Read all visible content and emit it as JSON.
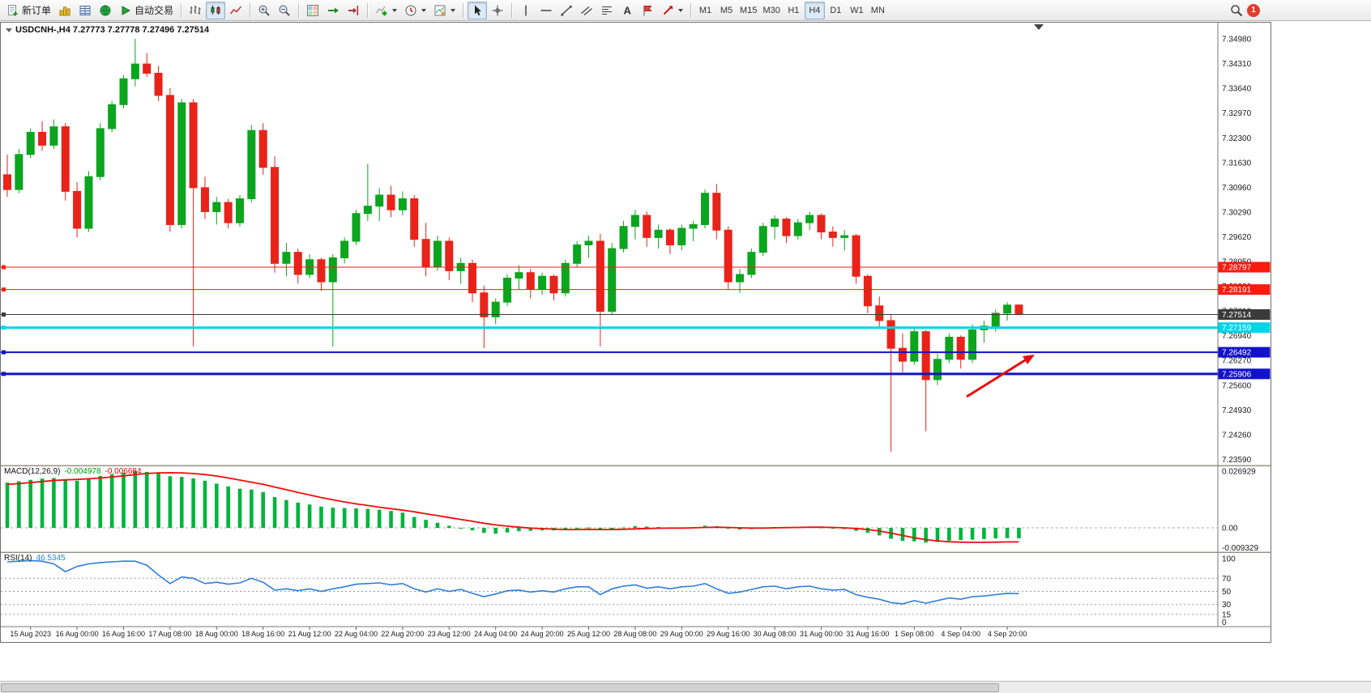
{
  "toolbar": {
    "new_order_label": "新订单",
    "auto_trading_label": "自动交易",
    "timeframes": [
      "M1",
      "M5",
      "M15",
      "M30",
      "H1",
      "H4",
      "D1",
      "W1",
      "MN"
    ],
    "active_timeframe": "H4",
    "notification_count": "1"
  },
  "chart": {
    "title": "USDCNH-,H4 7.27773 7.27778 7.27496 7.27514",
    "symbol": "USDCNH-",
    "timeframe": "H4",
    "open": "7.27773",
    "high": "7.27778",
    "low": "7.27496",
    "close": "7.27514",
    "up_color": "#0ba51e",
    "down_color": "#e8231a",
    "price_axis_labels": [
      "7.34980",
      "7.34310",
      "7.33640",
      "7.32970",
      "7.32300",
      "7.31630",
      "7.30960",
      "7.30290",
      "7.29620",
      "7.28950",
      "7.28280",
      "7.27610",
      "7.26940",
      "7.26270",
      "7.25600",
      "7.24930",
      "7.24260",
      "7.23590"
    ],
    "time_axis_labels": [
      "15 Aug 2023",
      "16 Aug 00:00",
      "16 Aug 16:00",
      "17 Aug 08:00",
      "18 Aug 00:00",
      "18 Aug 16:00",
      "21 Aug 12:00",
      "22 Aug 04:00",
      "22 Aug 20:00",
      "23 Aug 12:00",
      "24 Aug 04:00",
      "24 Aug 20:00",
      "25 Aug 12:00",
      "28 Aug 08:00",
      "29 Aug 00:00",
      "29 Aug 16:00",
      "30 Aug 08:00",
      "31 Aug 00:00",
      "31 Aug 16:00",
      "1 Sep 08:00",
      "4 Sep 04:00",
      "4 Sep 20:00"
    ],
    "hlines": [
      {
        "name": "resistance-line-1",
        "price": 7.28797,
        "label": "7.28797",
        "color": "#ff1a0e",
        "width": 1
      },
      {
        "name": "resistance-line-2",
        "price": 7.28191,
        "label": "7.28191",
        "color": "#ff1a0e",
        "width": 1
      },
      {
        "name": "current-price-line",
        "price": 7.27514,
        "label": "7.27514",
        "color": "#3a3a3a",
        "width": 1
      },
      {
        "name": "support-line-cyan",
        "price": 7.27159,
        "label": "7.27159",
        "color": "#00d4e8",
        "width": 3
      },
      {
        "name": "support-line-blue-1",
        "price": 7.26492,
        "label": "7.26492",
        "color": "#1212cc",
        "width": 2
      },
      {
        "name": "support-line-blue-2",
        "price": 7.25906,
        "label": "7.25906",
        "color": "#1212cc",
        "width": 3
      }
    ],
    "trend_arrow_color": "#e80c0c",
    "candles": [
      [
        7.313,
        7.3185,
        7.307,
        7.309
      ],
      [
        7.309,
        7.32,
        7.308,
        7.3185
      ],
      [
        7.3185,
        7.3255,
        7.3175,
        7.3245
      ],
      [
        7.3245,
        7.3275,
        7.3195,
        7.321
      ],
      [
        7.321,
        7.328,
        7.32,
        7.326
      ],
      [
        7.326,
        7.327,
        7.306,
        7.3085
      ],
      [
        7.3085,
        7.311,
        7.296,
        7.2985
      ],
      [
        7.2985,
        7.314,
        7.2975,
        7.3125
      ],
      [
        7.3125,
        7.327,
        7.3115,
        7.3255
      ],
      [
        7.3255,
        7.333,
        7.3245,
        7.332
      ],
      [
        7.332,
        7.34,
        7.331,
        7.339
      ],
      [
        7.339,
        7.3498,
        7.337,
        7.343
      ],
      [
        7.343,
        7.346,
        7.3395,
        7.3405
      ],
      [
        7.3405,
        7.3425,
        7.333,
        7.3345
      ],
      [
        7.3345,
        7.3365,
        7.2975,
        7.2995
      ],
      [
        7.2995,
        7.3335,
        7.2985,
        7.3325
      ],
      [
        7.3325,
        7.3335,
        7.2665,
        7.3095
      ],
      [
        7.3095,
        7.3125,
        7.301,
        7.303
      ],
      [
        7.303,
        7.307,
        7.2995,
        7.3055
      ],
      [
        7.3055,
        7.3065,
        7.2985,
        7.3
      ],
      [
        7.3,
        7.3075,
        7.299,
        7.3065
      ],
      [
        7.3065,
        7.3265,
        7.3055,
        7.325
      ],
      [
        7.325,
        7.327,
        7.313,
        7.315
      ],
      [
        7.315,
        7.318,
        7.2865,
        7.289
      ],
      [
        7.289,
        7.2945,
        7.2855,
        7.292
      ],
      [
        7.292,
        7.293,
        7.2835,
        7.286
      ],
      [
        7.286,
        7.2915,
        7.285,
        7.29
      ],
      [
        7.29,
        7.2905,
        7.2815,
        7.284
      ],
      [
        7.284,
        7.2915,
        7.2665,
        7.2905
      ],
      [
        7.2905,
        7.296,
        7.289,
        7.295
      ],
      [
        7.295,
        7.3035,
        7.294,
        7.3025
      ],
      [
        7.3025,
        7.316,
        7.3005,
        7.3045
      ],
      [
        7.3045,
        7.3095,
        7.3005,
        7.3075
      ],
      [
        7.3075,
        7.31,
        7.3015,
        7.3035
      ],
      [
        7.3035,
        7.3085,
        7.302,
        7.3065
      ],
      [
        7.3065,
        7.3075,
        7.2935,
        7.2955
      ],
      [
        7.2955,
        7.3,
        7.2855,
        7.288
      ],
      [
        7.288,
        7.2965,
        7.287,
        7.295
      ],
      [
        7.295,
        7.296,
        7.2845,
        7.287
      ],
      [
        7.287,
        7.2905,
        7.2835,
        7.289
      ],
      [
        7.289,
        7.29,
        7.2785,
        7.281
      ],
      [
        7.281,
        7.283,
        7.266,
        7.2745
      ],
      [
        7.2745,
        7.2795,
        7.2725,
        7.2785
      ],
      [
        7.2785,
        7.286,
        7.2775,
        7.285
      ],
      [
        7.285,
        7.2885,
        7.282,
        7.2865
      ],
      [
        7.2865,
        7.2875,
        7.2795,
        7.282
      ],
      [
        7.282,
        7.2865,
        7.2805,
        7.2855
      ],
      [
        7.2855,
        7.286,
        7.279,
        7.281
      ],
      [
        7.281,
        7.29,
        7.28,
        7.289
      ],
      [
        7.289,
        7.295,
        7.288,
        7.294
      ],
      [
        7.294,
        7.2965,
        7.2905,
        7.295
      ],
      [
        7.295,
        7.297,
        7.2665,
        7.276
      ],
      [
        7.276,
        7.2945,
        7.275,
        7.293
      ],
      [
        7.293,
        7.3005,
        7.292,
        7.299
      ],
      [
        7.299,
        7.3035,
        7.2955,
        7.302
      ],
      [
        7.302,
        7.303,
        7.2935,
        7.296
      ],
      [
        7.296,
        7.2995,
        7.293,
        7.298
      ],
      [
        7.298,
        7.2985,
        7.2915,
        7.294
      ],
      [
        7.294,
        7.2995,
        7.2925,
        7.2985
      ],
      [
        7.2985,
        7.3005,
        7.295,
        7.2995
      ],
      [
        7.2995,
        7.309,
        7.2985,
        7.308
      ],
      [
        7.308,
        7.3105,
        7.2955,
        7.298
      ],
      [
        7.298,
        7.299,
        7.282,
        7.284
      ],
      [
        7.284,
        7.2875,
        7.281,
        7.286
      ],
      [
        7.286,
        7.293,
        7.285,
        7.292
      ],
      [
        7.292,
        7.3,
        7.291,
        7.299
      ],
      [
        7.299,
        7.302,
        7.2955,
        7.301
      ],
      [
        7.301,
        7.3015,
        7.2945,
        7.2965
      ],
      [
        7.2965,
        7.301,
        7.2955,
        7.3
      ],
      [
        7.3,
        7.303,
        7.298,
        7.302
      ],
      [
        7.302,
        7.3025,
        7.2955,
        7.2975
      ],
      [
        7.2975,
        7.299,
        7.2935,
        7.296
      ],
      [
        7.296,
        7.298,
        7.2925,
        7.2965
      ],
      [
        7.2965,
        7.297,
        7.2835,
        7.2855
      ],
      [
        7.2855,
        7.286,
        7.2755,
        7.2775
      ],
      [
        7.2775,
        7.28,
        7.2715,
        7.2735
      ],
      [
        7.2735,
        7.275,
        7.238,
        7.266
      ],
      [
        7.266,
        7.27,
        7.2595,
        7.2625
      ],
      [
        7.2625,
        7.272,
        7.2615,
        7.2705
      ],
      [
        7.2705,
        7.271,
        7.2435,
        7.2575
      ],
      [
        7.2575,
        7.2645,
        7.256,
        7.263
      ],
      [
        7.263,
        7.27,
        7.262,
        7.269
      ],
      [
        7.269,
        7.2695,
        7.2605,
        7.263
      ],
      [
        7.263,
        7.2725,
        7.262,
        7.271
      ],
      [
        7.271,
        7.2735,
        7.2675,
        7.272
      ],
      [
        7.272,
        7.2765,
        7.2705,
        7.2755
      ],
      [
        7.2755,
        7.2785,
        7.2735,
        7.2777
      ],
      [
        7.27773,
        7.27778,
        7.27496,
        7.27514
      ]
    ]
  },
  "macd": {
    "label": "MACD(12,26,9)",
    "value_main": "-0.004978",
    "value_signal": "-0.006684",
    "histogram_color": "#00b43c",
    "signal_color": "#f20c0c",
    "axis_labels": [
      {
        "text": "0.026929",
        "value": 0.026929
      },
      {
        "text": "0.00",
        "value": 0
      },
      {
        "text": "-0.009329",
        "value": -0.009329
      }
    ],
    "histogram": [
      0.0215,
      0.0221,
      0.0228,
      0.0234,
      0.0237,
      0.023,
      0.0224,
      0.0235,
      0.0246,
      0.0255,
      0.0262,
      0.0269,
      0.0266,
      0.0259,
      0.0245,
      0.0242,
      0.0235,
      0.0224,
      0.021,
      0.0197,
      0.0186,
      0.0182,
      0.017,
      0.0146,
      0.0132,
      0.012,
      0.0111,
      0.0101,
      0.0096,
      0.0094,
      0.0093,
      0.009,
      0.0086,
      0.008,
      0.0072,
      0.0052,
      0.0038,
      0.0024,
      0.001,
      -0.0002,
      -0.0012,
      -0.0024,
      -0.0028,
      -0.0022,
      -0.0016,
      -0.0014,
      -0.0012,
      -0.0012,
      -0.0008,
      -0.0002,
      0.0002,
      -0.001,
      -0.0006,
      0.0002,
      0.0008,
      0.0006,
      0.0004,
      0.0002,
      0.0002,
      0.0004,
      0.001,
      0.0008,
      -0.0004,
      -0.0008,
      -0.0006,
      0.0,
      0.0004,
      0.0002,
      0.0004,
      0.0006,
      0.0002,
      -0.0004,
      -0.0006,
      -0.0014,
      -0.0024,
      -0.0036,
      -0.0052,
      -0.0062,
      -0.0064,
      -0.007,
      -0.0067,
      -0.0061,
      -0.0058,
      -0.0056,
      -0.0053,
      -0.005,
      -0.0049,
      -0.00498
    ],
    "signal": [
      0.0206,
      0.021,
      0.0215,
      0.022,
      0.0225,
      0.0228,
      0.023,
      0.0233,
      0.0237,
      0.0242,
      0.0247,
      0.0253,
      0.0258,
      0.0261,
      0.0262,
      0.0261,
      0.0258,
      0.0253,
      0.0246,
      0.0237,
      0.0227,
      0.0217,
      0.0207,
      0.0194,
      0.0181,
      0.0168,
      0.0156,
      0.0144,
      0.0133,
      0.0123,
      0.0114,
      0.0106,
      0.0098,
      0.0091,
      0.0084,
      0.0076,
      0.0067,
      0.0058,
      0.0049,
      0.004,
      0.0031,
      0.0022,
      0.0014,
      0.0008,
      0.0003,
      -0.0001,
      -0.0004,
      -0.0006,
      -0.0008,
      -0.0008,
      -0.0007,
      -0.0008,
      -0.0008,
      -0.0007,
      -0.0005,
      -0.0003,
      -0.0002,
      -0.0001,
      -0.0001,
      0.0,
      0.0002,
      0.0003,
      0.0002,
      0.0,
      -0.0001,
      -0.0001,
      0.0,
      0.0001,
      0.0002,
      0.0003,
      0.0003,
      0.0002,
      0.0,
      -0.0003,
      -0.0008,
      -0.0015,
      -0.0025,
      -0.0036,
      -0.0047,
      -0.0056,
      -0.0062,
      -0.0066,
      -0.0068,
      -0.0069,
      -0.0069,
      -0.0068,
      -0.0067,
      -0.006684
    ]
  },
  "rsi": {
    "label": "RSI(14)",
    "value": "46.5345",
    "line_color": "#2f7ed8",
    "levels": [
      {
        "text": "100",
        "value": 100
      },
      {
        "text": "70",
        "value": 70
      },
      {
        "text": "50",
        "value": 50
      },
      {
        "text": "30",
        "value": 30
      },
      {
        "text": "15",
        "value": 15
      },
      {
        "text": "0",
        "value": 0
      }
    ],
    "values": [
      95,
      96,
      97,
      96,
      92,
      80,
      88,
      92,
      94,
      95,
      96,
      96,
      90,
      75,
      62,
      72,
      70,
      62,
      64,
      61,
      63,
      70,
      64,
      52,
      54,
      51,
      54,
      50,
      54,
      57,
      61,
      62,
      63,
      60,
      62,
      54,
      49,
      54,
      50,
      53,
      47,
      42,
      46,
      51,
      52,
      49,
      51,
      49,
      54,
      57,
      57,
      45,
      54,
      58,
      60,
      55,
      57,
      54,
      57,
      58,
      62,
      54,
      47,
      49,
      53,
      57,
      58,
      54,
      57,
      58,
      54,
      52,
      53,
      45,
      41,
      38,
      33,
      31,
      36,
      32,
      36,
      40,
      38,
      42,
      43,
      45,
      47,
      46.5345
    ]
  }
}
